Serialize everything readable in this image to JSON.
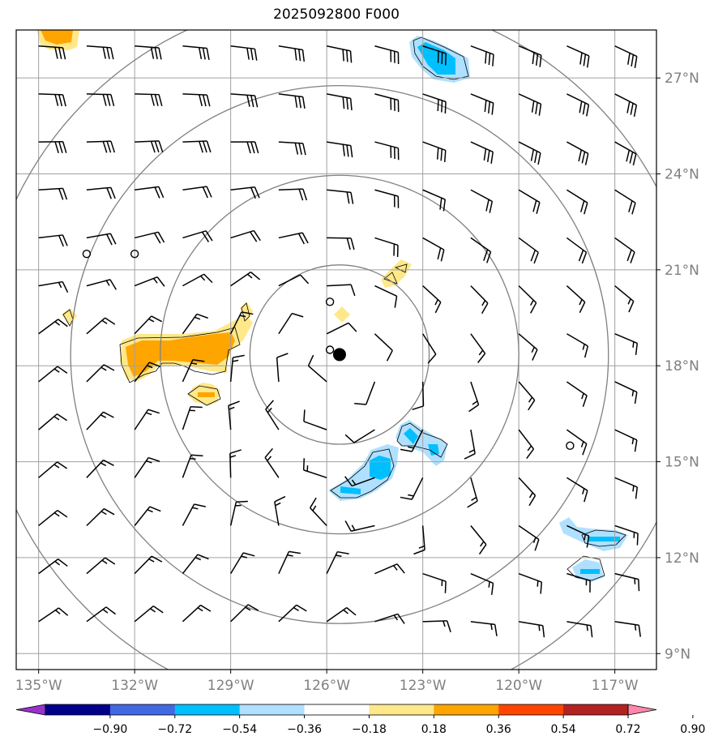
{
  "title": "2025092800 F000",
  "map": {
    "lon_range": [
      -135.7,
      -115.7
    ],
    "lat_range": [
      8.5,
      28.5
    ],
    "lon_ticks": [
      -135,
      -132,
      -129,
      -126,
      -123,
      -120,
      -117
    ],
    "lat_ticks": [
      9,
      12,
      15,
      18,
      21,
      24,
      27
    ],
    "lon_tick_labels": [
      "135°W",
      "132°W",
      "129°W",
      "126°W",
      "123°W",
      "120°W",
      "117°W"
    ],
    "lat_tick_labels": [
      "9°N",
      "12°N",
      "15°N",
      "18°N",
      "21°N",
      "24°N",
      "27°N"
    ],
    "storm_center": {
      "lon": -125.6,
      "lat": 18.35
    },
    "range_ring_center": {
      "lon": -125.6,
      "lat": 18.35
    },
    "range_rings_deg": [
      2.8,
      5.6,
      8.4,
      11.2
    ],
    "calm_markers": [
      {
        "lon": -133.5,
        "lat": 21.5
      },
      {
        "lon": -132.0,
        "lat": 21.5
      },
      {
        "lon": -125.9,
        "lat": 20.0
      },
      {
        "lon": -125.9,
        "lat": 18.5
      },
      {
        "lon": -118.4,
        "lat": 15.5
      }
    ]
  },
  "colorbar": {
    "levels": [
      -0.9,
      -0.72,
      -0.54,
      -0.36,
      -0.18,
      0.18,
      0.36,
      0.54,
      0.72,
      0.9
    ],
    "tick_labels": [
      "−0.90",
      "−0.72",
      "−0.54",
      "−0.36",
      "−0.18",
      "0.18",
      "0.36",
      "0.54",
      "0.72",
      "0.90"
    ],
    "colors": [
      "#9932CC",
      "#00008B",
      "#4169E1",
      "#00BFFF",
      "#B0E0FF",
      "#FFFFFF",
      "#FFE88A",
      "#FFA500",
      "#FF4500",
      "#B22222",
      "#FF88AA"
    ]
  },
  "colors": {
    "grid": "#a0a0a0",
    "rings": "#808080",
    "barbs": "#000000",
    "pos_light": "#FFE88A",
    "pos_mid": "#FFA500",
    "neg_light": "#B0E0FF",
    "neg_mid": "#00BFFF"
  }
}
